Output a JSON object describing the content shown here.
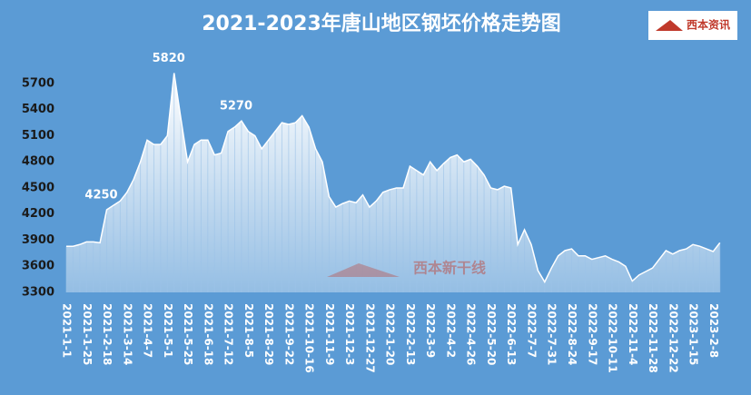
{
  "chart_data": {
    "type": "area",
    "title": "2021-2023年唐山地区钢坯价格走势图",
    "logo": "西本资讯",
    "watermark": "西本新干线",
    "color": "#ffffff",
    "background": "#5b9bd5",
    "ylim": [
      3300,
      5800
    ],
    "yticks": [
      3300,
      3600,
      3900,
      4200,
      4500,
      4800,
      5100,
      5400,
      5700
    ],
    "grid": false,
    "annotations": [
      4250,
      5820,
      5270
    ],
    "categories": [
      "2021-1-1",
      null,
      null,
      "2021-1-25",
      null,
      null,
      "2021-2-18",
      null,
      null,
      "2021-3-14",
      null,
      null,
      "2021-4-7",
      null,
      null,
      "2021-5-1",
      null,
      null,
      "2021-5-25",
      null,
      null,
      "2021-6-18",
      null,
      null,
      "2021-7-12",
      null,
      null,
      "2021-8-5",
      null,
      null,
      "2021-8-29",
      null,
      null,
      "2021-9-22",
      null,
      null,
      "2021-10-16",
      null,
      null,
      "2021-11-9",
      null,
      null,
      "2021-12-3",
      null,
      null,
      "2021-12-27",
      null,
      null,
      "2022-1-20",
      null,
      null,
      "2022-2-13",
      null,
      null,
      "2022-3-9",
      null,
      null,
      "2022-4-2",
      null,
      null,
      "2022-4-26",
      null,
      null,
      "2022-5-20",
      null,
      null,
      "2022-6-13",
      null,
      null,
      "2022-7-7",
      null,
      null,
      "2022-7-31",
      null,
      null,
      "2022-8-24",
      null,
      null,
      "2022-9-17",
      null,
      null,
      "2022-10-11",
      null,
      null,
      "2022-11-4",
      null,
      null,
      "2022-11-28",
      null,
      null,
      "2022-12-22",
      null,
      null,
      "2023-1-15",
      null,
      null,
      "2023-2-8",
      null
    ],
    "values": [
      3830,
      3830,
      3850,
      3880,
      3880,
      3870,
      4250,
      4300,
      4350,
      4450,
      4600,
      4800,
      5050,
      5000,
      5000,
      5100,
      5820,
      5300,
      4800,
      5000,
      5050,
      5050,
      4880,
      4900,
      5150,
      5200,
      5270,
      5150,
      5100,
      4950,
      5050,
      5150,
      5250,
      5230,
      5250,
      5330,
      5200,
      4950,
      4800,
      4400,
      4280,
      4320,
      4350,
      4330,
      4420,
      4280,
      4350,
      4450,
      4480,
      4500,
      4500,
      4750,
      4700,
      4650,
      4800,
      4700,
      4780,
      4850,
      4880,
      4800,
      4830,
      4750,
      4650,
      4500,
      4480,
      4520,
      4500,
      3850,
      4020,
      3850,
      3550,
      3420,
      3580,
      3720,
      3780,
      3800,
      3720,
      3720,
      3680,
      3700,
      3720,
      3680,
      3650,
      3600,
      3430,
      3500,
      3540,
      3580,
      3680,
      3780,
      3740,
      3780,
      3800,
      3850,
      3830,
      3800,
      3770,
      3870
    ]
  }
}
